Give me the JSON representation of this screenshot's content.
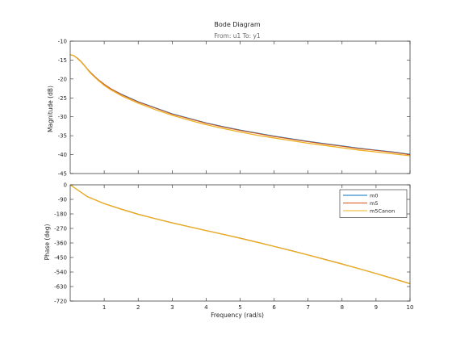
{
  "chart_data": {
    "type": "line",
    "title": "Bode Diagram",
    "subtitle": "From: u1  To: y1",
    "xlabel": "Frequency  (rad/s)",
    "xlim": [
      0,
      10
    ],
    "x_ticks": [
      "1",
      "2",
      "3",
      "4",
      "5",
      "6",
      "7",
      "8",
      "9",
      "10"
    ],
    "legend_position": "top-right",
    "panels": [
      {
        "id": "magnitude",
        "ylabel": "Magnitude (dB)",
        "ylim": [
          -45,
          -10
        ],
        "y_ticks": [
          -10,
          -15,
          -20,
          -25,
          -30,
          -35,
          -40,
          -45
        ],
        "x": [
          0,
          0.1,
          0.2,
          0.3,
          0.4,
          0.5,
          0.6,
          0.8,
          1.0,
          1.2,
          1.5,
          2.0,
          2.5,
          3.0,
          3.5,
          4.0,
          4.5,
          5.0,
          5.5,
          6.0,
          6.5,
          7.0,
          7.5,
          8.0,
          8.5,
          9.0,
          9.5,
          10.0
        ],
        "series": [
          {
            "name": "m0",
            "color": "#0072bd",
            "values": [
              -13.6,
              -13.8,
              -14.4,
              -15.2,
              -16.2,
              -17.3,
              -18.3,
              -20.0,
              -21.4,
              -22.6,
              -24.0,
              -26.0,
              -27.6,
              -29.2,
              -30.4,
              -31.6,
              -32.6,
              -33.5,
              -34.3,
              -35.1,
              -35.8,
              -36.5,
              -37.1,
              -37.7,
              -38.3,
              -38.8,
              -39.3,
              -39.9
            ]
          },
          {
            "name": "m5",
            "color": "#d95319",
            "values": [
              -13.6,
              -13.8,
              -14.4,
              -15.2,
              -16.2,
              -17.3,
              -18.3,
              -20.0,
              -21.4,
              -22.6,
              -24.1,
              -26.1,
              -27.7,
              -29.3,
              -30.5,
              -31.7,
              -32.7,
              -33.6,
              -34.4,
              -35.2,
              -35.9,
              -36.6,
              -37.2,
              -37.8,
              -38.4,
              -38.9,
              -39.4,
              -40.0
            ]
          },
          {
            "name": "m5Canon",
            "color": "#edb120",
            "values": [
              -13.6,
              -13.8,
              -14.5,
              -15.3,
              -16.3,
              -17.4,
              -18.5,
              -20.2,
              -21.7,
              -22.9,
              -24.4,
              -26.4,
              -28.1,
              -29.6,
              -30.9,
              -32.1,
              -33.1,
              -34.0,
              -34.9,
              -35.6,
              -36.3,
              -37.0,
              -37.6,
              -38.2,
              -38.8,
              -39.3,
              -39.8,
              -40.3
            ]
          }
        ]
      },
      {
        "id": "phase",
        "ylabel": "Phase (deg)",
        "ylim": [
          -720,
          0
        ],
        "y_ticks": [
          0,
          -90,
          -180,
          -270,
          -360,
          -450,
          -540,
          -630,
          -720
        ],
        "x": [
          0,
          0.5,
          1.0,
          1.5,
          2.0,
          2.5,
          3.0,
          3.5,
          4.0,
          4.5,
          5.0,
          5.5,
          6.0,
          6.5,
          7.0,
          7.5,
          8.0,
          8.5,
          9.0,
          9.5,
          10.0
        ],
        "series": [
          {
            "name": "m0",
            "color": "#0072bd",
            "values": [
              0,
              -72,
              -116,
              -150,
              -182,
              -209,
              -235,
              -259,
              -283,
              -306,
              -330,
              -355,
              -381,
              -407,
              -434,
              -462,
              -490,
              -519,
              -549,
              -580,
              -612
            ]
          },
          {
            "name": "m5",
            "color": "#d95319",
            "values": [
              0,
              -72,
              -116,
              -150,
              -182,
              -209,
              -235,
              -259,
              -283,
              -306,
              -330,
              -355,
              -381,
              -407,
              -434,
              -462,
              -490,
              -519,
              -549,
              -580,
              -612
            ]
          },
          {
            "name": "m5Canon",
            "color": "#edb120",
            "values": [
              0,
              -73,
              -117,
              -151,
              -183,
              -210,
              -236,
              -260,
              -284,
              -307,
              -331,
              -356,
              -382,
              -408,
              -435,
              -463,
              -491,
              -520,
              -550,
              -581,
              -613
            ]
          }
        ]
      }
    ]
  }
}
